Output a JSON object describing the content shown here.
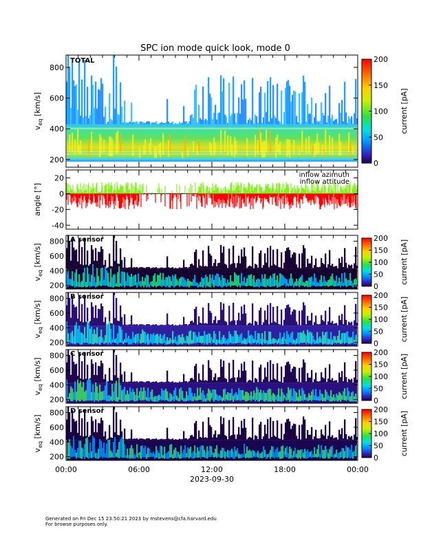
{
  "title": "SPC ion mode quick look, mode 0",
  "footer": {
    "generated": "Generated on Fri Dec 15 23:50:21 2023 by mstevens@cfa.harvard.edu",
    "note": "For browse purposes only."
  },
  "colors": {
    "inflow_azimuth": "#ff0000",
    "inflow_attitude": "#88ee22"
  },
  "chart_data": [
    {
      "type": "heatmap",
      "panel": "total",
      "label": "TOTAL",
      "ylabel": "v_eq [km/s]",
      "ylabel_main": "v",
      "ylabel_sub": "eq",
      "ylabel_unit": "[km/s]",
      "ylim": [
        150,
        880
      ],
      "yticks": [
        200,
        400,
        600,
        800
      ],
      "xticks": [
        "00:00",
        "06:00",
        "12:00",
        "18:00",
        "00:00"
      ],
      "colorbar": {
        "label": "current [pA]",
        "range": [
          0,
          200
        ],
        "ticks": [
          0,
          50,
          100,
          150,
          200
        ],
        "scale": "rainbow"
      },
      "band_core": [
        200,
        430
      ]
    },
    {
      "type": "line",
      "panel": "angle",
      "ylabel": "angle [°]",
      "ylim": [
        -45,
        30
      ],
      "yticks": [
        -40,
        -20,
        0,
        20
      ],
      "series": [
        {
          "name": "inflow azimuth",
          "typical_range": [
            -20,
            0
          ]
        },
        {
          "name": "inflow attitude",
          "typical_range": [
            0,
            15
          ]
        }
      ],
      "xticks": [
        "00:00",
        "06:00",
        "12:00",
        "18:00",
        "00:00"
      ]
    },
    {
      "type": "heatmap",
      "panel": "A",
      "label": "A sensor",
      "ylabel": "v_eq [km/s]",
      "ylabel_main": "v",
      "ylabel_sub": "eq",
      "ylabel_unit": "[km/s]",
      "ylim": [
        150,
        880
      ],
      "yticks": [
        200,
        400,
        600,
        800
      ],
      "colorbar": {
        "label": "current [pA]",
        "range": [
          0,
          200
        ],
        "ticks": [
          0,
          50,
          100,
          150,
          200
        ],
        "scale": "rainbow"
      }
    },
    {
      "type": "heatmap",
      "panel": "B",
      "label": "B sensor",
      "ylabel": "v_eq [km/s]",
      "ylabel_main": "v",
      "ylabel_sub": "eq",
      "ylabel_unit": "[km/s]",
      "ylim": [
        150,
        880
      ],
      "yticks": [
        200,
        400,
        600,
        800
      ],
      "colorbar": {
        "label": "current [pA]",
        "range": [
          0,
          200
        ],
        "ticks": [
          0,
          50,
          100,
          150,
          200
        ],
        "scale": "rainbow"
      }
    },
    {
      "type": "heatmap",
      "panel": "C",
      "label": "C sensor",
      "ylabel": "v_eq [km/s]",
      "ylabel_main": "v",
      "ylabel_sub": "eq",
      "ylabel_unit": "[km/s]",
      "ylim": [
        150,
        880
      ],
      "yticks": [
        200,
        400,
        600,
        800
      ],
      "colorbar": {
        "label": "current [pA]",
        "range": [
          0,
          200
        ],
        "ticks": [
          0,
          50,
          100,
          150,
          200
        ],
        "scale": "rainbow"
      }
    },
    {
      "type": "heatmap",
      "panel": "D",
      "label": "D sensor",
      "ylabel": "v_eq [km/s]",
      "ylabel_main": "v",
      "ylabel_sub": "eq",
      "ylabel_unit": "[km/s]",
      "ylim": [
        150,
        880
      ],
      "yticks": [
        200,
        400,
        600,
        800
      ],
      "colorbar": {
        "label": "current [pA]",
        "range": [
          0,
          200
        ],
        "ticks": [
          0,
          50,
          100,
          150,
          200
        ],
        "scale": "rainbow"
      },
      "xticks": [
        "00:00",
        "06:00",
        "12:00",
        "18:00",
        "00:00"
      ],
      "xlabel": "2023-09-30"
    }
  ]
}
